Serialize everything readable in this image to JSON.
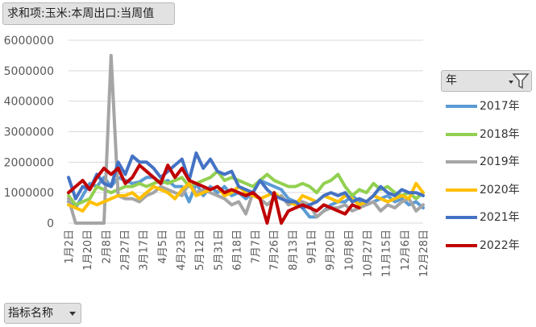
{
  "field_buttons": {
    "value_field": "求和项:玉米:本周出口:当周值",
    "legend_field": "年",
    "axis_field": "指标名称"
  },
  "chart_data": {
    "type": "line",
    "ylim": [
      0,
      6000000
    ],
    "yticks": [
      "0",
      "1000000",
      "2000000",
      "3000000",
      "4000000",
      "5000000",
      "6000000"
    ],
    "xticks": [
      "1月2日",
      "1月20日",
      "2月8日",
      "2月27日",
      "3月17日",
      "4月5日",
      "4月23日",
      "5月12日",
      "5月31日",
      "6月18日",
      "7月7日",
      "7月26日",
      "8月13日",
      "9月1日",
      "9月20日",
      "10月8日",
      "10月27日",
      "11月15日",
      "12月6日",
      "12月28日"
    ],
    "grid": true,
    "legend_position": "right",
    "series": [
      {
        "name": "2017年",
        "color": "#5B9BD5",
        "values": [
          700000,
          500000,
          900000,
          1300000,
          1200000,
          1500000,
          1200000,
          1500000,
          1400000,
          1300000,
          1350000,
          1500000,
          1500000,
          1300000,
          1400000,
          1200000,
          1200000,
          700000,
          1300000,
          900000,
          1200000,
          1000000,
          1200000,
          900000,
          1000000,
          800000,
          1000000,
          1400000,
          1300000,
          1200000,
          1100000,
          800000,
          700000,
          500000,
          200000,
          200000,
          400000,
          600000,
          700000,
          700000,
          900000,
          700000,
          600000,
          700000,
          800000,
          900000,
          700000,
          800000,
          600000,
          700000,
          500000
        ]
      },
      {
        "name": "2018年",
        "color": "#92D050",
        "values": [
          900000,
          600000,
          700000,
          800000,
          1200000,
          1100000,
          1000000,
          1100000,
          1200000,
          1200000,
          1300000,
          1200000,
          1300000,
          1400000,
          1300000,
          1400000,
          1500000,
          1200000,
          1300000,
          1400000,
          1500000,
          1700000,
          1400000,
          1500000,
          1400000,
          1300000,
          1200000,
          1400000,
          1600000,
          1400000,
          1300000,
          1200000,
          1200000,
          1300000,
          1200000,
          1000000,
          1300000,
          1400000,
          1600000,
          1200000,
          900000,
          1100000,
          1000000,
          1300000,
          1100000,
          1200000,
          1000000,
          900000,
          1000000,
          800000,
          1000000
        ]
      },
      {
        "name": "2019年",
        "color": "#A5A5A5",
        "values": [
          800000,
          0,
          0,
          0,
          0,
          0,
          5500000,
          900000,
          800000,
          800000,
          700000,
          900000,
          1000000,
          1200000,
          1100000,
          1000000,
          900000,
          1300000,
          1000000,
          1100000,
          1000000,
          900000,
          800000,
          600000,
          700000,
          300000,
          1000000,
          800000,
          600000,
          800000,
          900000,
          600000,
          700000,
          700000,
          600000,
          200000,
          400000,
          500000,
          500000,
          600000,
          400000,
          500000,
          600000,
          700000,
          400000,
          600000,
          500000,
          700000,
          800000,
          400000,
          600000
        ]
      },
      {
        "name": "2020年",
        "color": "#FFC000",
        "values": [
          600000,
          500000,
          400000,
          700000,
          600000,
          700000,
          800000,
          900000,
          900000,
          1000000,
          800000,
          1000000,
          1200000,
          1100000,
          1000000,
          800000,
          1100000,
          1300000,
          900000,
          1000000,
          1100000,
          1200000,
          900000,
          1000000,
          1200000,
          1000000,
          900000,
          800000,
          900000,
          1000000,
          800000,
          700000,
          600000,
          900000,
          800000,
          700000,
          900000,
          800000,
          700000,
          900000,
          800000,
          600000,
          700000,
          900000,
          800000,
          700000,
          800000,
          900000,
          800000,
          1300000,
          1000000
        ]
      },
      {
        "name": "2021年",
        "color": "#4472C4",
        "values": [
          1500000,
          800000,
          1200000,
          1100000,
          1600000,
          1300000,
          1200000,
          2000000,
          1600000,
          2200000,
          2000000,
          2000000,
          1800000,
          1500000,
          1700000,
          1900000,
          2100000,
          1400000,
          2300000,
          1800000,
          2100000,
          1700000,
          1600000,
          1700000,
          1200000,
          1100000,
          1000000,
          1400000,
          1100000,
          900000,
          800000,
          700000,
          700000,
          500000,
          600000,
          700000,
          900000,
          1000000,
          900000,
          1000000,
          700000,
          800000,
          700000,
          900000,
          1200000,
          1000000,
          900000,
          1100000,
          1000000,
          1000000,
          900000
        ]
      },
      {
        "name": "2022年",
        "color": "#C00000",
        "values": [
          1000000,
          1200000,
          1400000,
          1100000,
          1500000,
          1800000,
          1600000,
          1800000,
          1300000,
          1500000,
          1900000,
          1700000,
          1500000,
          1300000,
          1900000,
          1500000,
          1800000,
          1400000,
          1300000,
          1200000,
          1100000,
          1200000,
          1000000,
          1100000,
          1000000,
          900000,
          1000000,
          800000,
          0,
          1000000,
          0,
          400000,
          500000,
          600000,
          500000,
          400000,
          600000,
          500000,
          400000,
          300000,
          600000,
          500000
        ]
      }
    ]
  }
}
